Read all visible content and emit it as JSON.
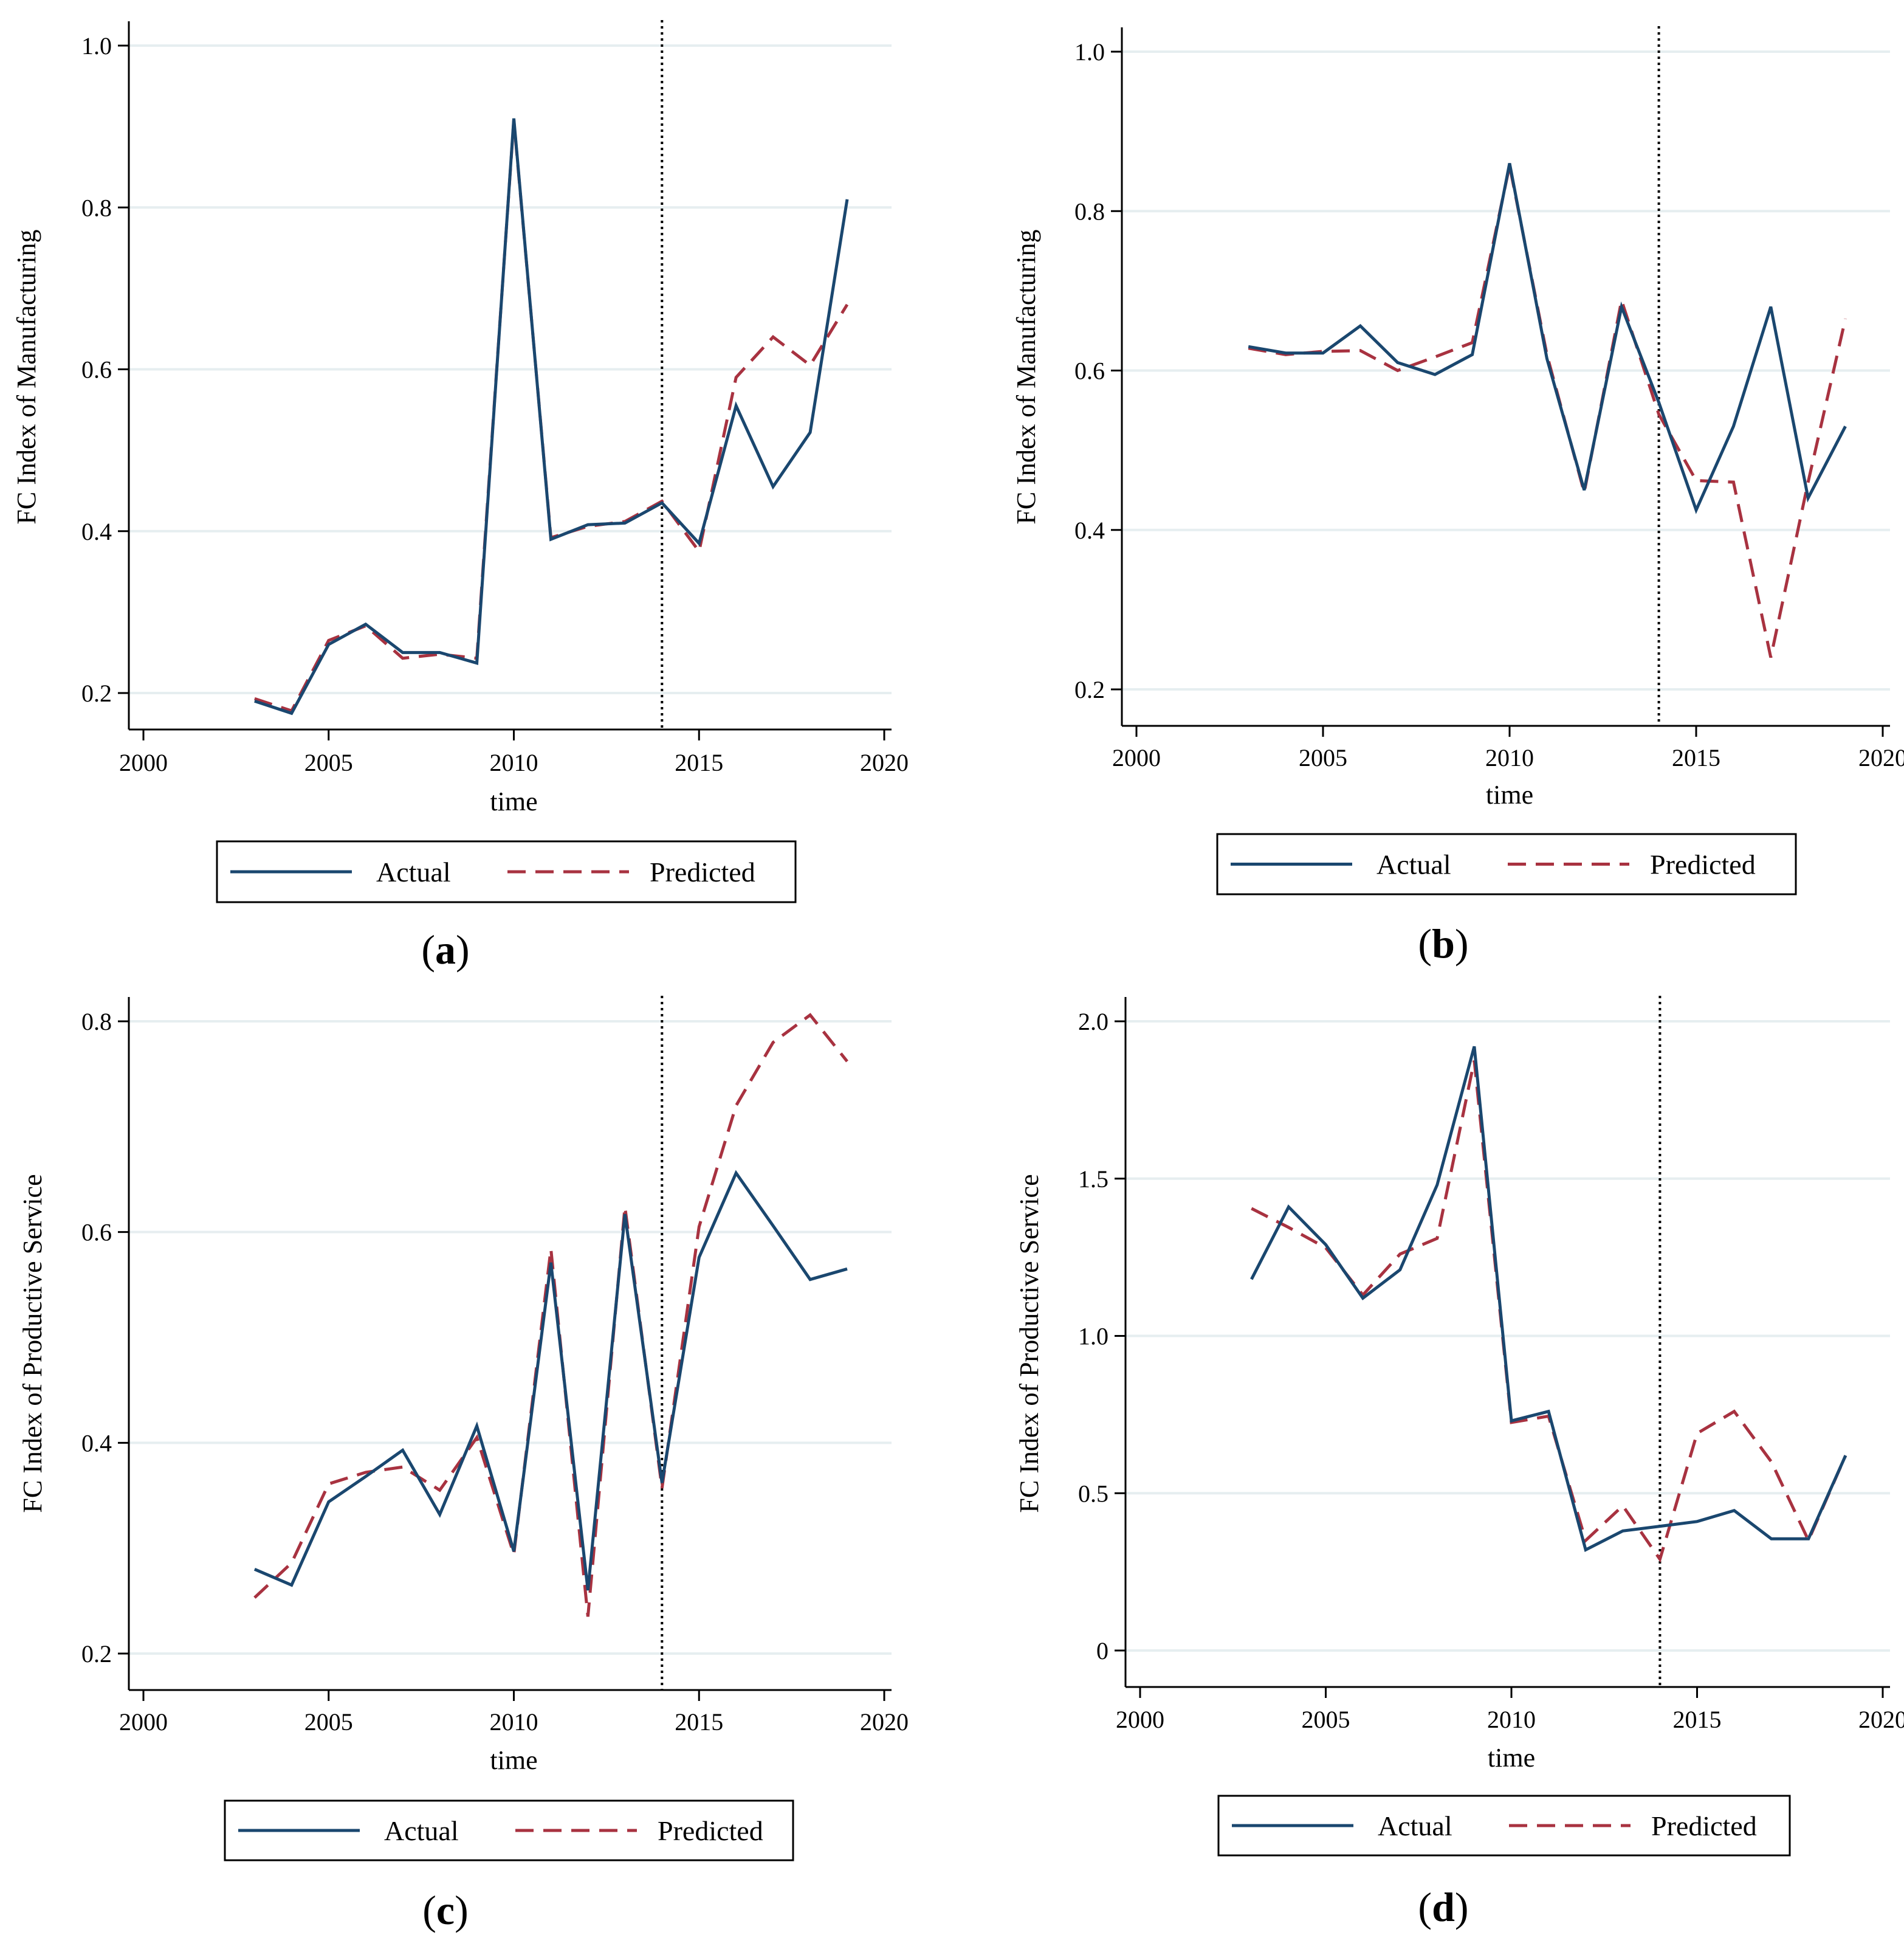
{
  "colors": {
    "actual": "#1a476f",
    "predicted": "#a83240",
    "grid": "#e6eef0",
    "axis": "#000000"
  },
  "chart_data": [
    {
      "type": "line",
      "panel_label": "a",
      "xlabel": "time",
      "ylabel": "FC Index of Manufacturing",
      "xlim": [
        2000,
        2020
      ],
      "ylim": [
        0.2,
        1.0
      ],
      "xticks": [
        2000,
        2005,
        2010,
        2015,
        2020
      ],
      "xtick_labels": [
        "2000",
        "2005",
        "2010",
        "2015",
        "2020"
      ],
      "yticks": [
        0.2,
        0.4,
        0.6,
        0.8,
        1.0
      ],
      "ytick_labels": [
        "0.2",
        "0.4",
        "0.6",
        "0.8",
        "1.0"
      ],
      "grid": true,
      "legend_position": "bottom",
      "vline_x": 2014,
      "x": [
        2003,
        2004,
        2005,
        2006,
        2007,
        2008,
        2009,
        2010,
        2011,
        2012,
        2013,
        2014,
        2015,
        2016,
        2017,
        2018,
        2019
      ],
      "series": [
        {
          "name": "Actual",
          "style": "solid",
          "values": [
            0.19,
            0.175,
            0.26,
            0.285,
            0.25,
            0.25,
            0.237,
            0.91,
            0.39,
            0.408,
            0.41,
            0.435,
            0.385,
            0.555,
            0.455,
            0.522,
            0.81
          ]
        },
        {
          "name": "Predicted",
          "style": "dashed",
          "values": [
            0.193,
            0.178,
            0.265,
            0.283,
            0.243,
            0.248,
            0.243,
            0.908,
            0.392,
            0.406,
            0.412,
            0.437,
            0.375,
            0.59,
            0.64,
            0.605,
            0.68
          ]
        }
      ]
    },
    {
      "type": "line",
      "panel_label": "b",
      "xlabel": "time",
      "ylabel": "FC Index of Manufacturing",
      "xlim": [
        2000,
        2020
      ],
      "ylim": [
        0.2,
        1.0
      ],
      "xticks": [
        2000,
        2005,
        2010,
        2015,
        2020
      ],
      "xtick_labels": [
        "2000",
        "2005",
        "2010",
        "2015",
        "2020"
      ],
      "yticks": [
        0.2,
        0.4,
        0.6,
        0.8,
        1.0
      ],
      "ytick_labels": [
        "0.2",
        "0.4",
        "0.6",
        "0.8",
        "1.0"
      ],
      "grid": true,
      "legend_position": "bottom",
      "vline_x": 2014,
      "x": [
        2003,
        2004,
        2005,
        2006,
        2007,
        2008,
        2009,
        2010,
        2011,
        2012,
        2013,
        2014,
        2015,
        2016,
        2017,
        2018,
        2019
      ],
      "series": [
        {
          "name": "Actual",
          "style": "solid",
          "values": [
            0.63,
            0.622,
            0.622,
            0.656,
            0.61,
            0.595,
            0.62,
            0.86,
            0.615,
            0.45,
            0.68,
            0.56,
            0.425,
            0.53,
            0.68,
            0.44,
            0.53
          ]
        },
        {
          "name": "Predicted",
          "style": "dashed",
          "values": [
            0.628,
            0.62,
            0.624,
            0.625,
            0.6,
            0.617,
            0.635,
            0.857,
            0.62,
            0.447,
            0.688,
            0.545,
            0.462,
            0.46,
            0.24,
            0.46,
            0.665
          ]
        }
      ]
    },
    {
      "type": "line",
      "panel_label": "c",
      "xlabel": "time",
      "ylabel": "FC Index of Productive Service",
      "xlim": [
        2000,
        2020
      ],
      "ylim": [
        0.2,
        0.8
      ],
      "xticks": [
        2000,
        2005,
        2010,
        2015,
        2020
      ],
      "xtick_labels": [
        "2000",
        "2005",
        "2010",
        "2015",
        "2020"
      ],
      "yticks": [
        0.2,
        0.4,
        0.6,
        0.8
      ],
      "ytick_labels": [
        "0.2",
        "0.4",
        "0.6",
        "0.8"
      ],
      "grid": true,
      "legend_position": "bottom",
      "vline_x": 2014,
      "x": [
        2003,
        2004,
        2005,
        2006,
        2007,
        2008,
        2009,
        2010,
        2011,
        2012,
        2013,
        2014,
        2015,
        2016,
        2017,
        2018,
        2019
      ],
      "series": [
        {
          "name": "Actual",
          "style": "solid",
          "values": [
            0.28,
            0.265,
            0.344,
            0.368,
            0.393,
            0.332,
            0.416,
            0.297,
            0.571,
            0.26,
            0.617,
            0.362,
            0.576,
            0.656,
            0.606,
            0.555,
            0.565
          ]
        },
        {
          "name": "Predicted",
          "style": "dashed",
          "values": [
            0.253,
            0.286,
            0.361,
            0.372,
            0.377,
            0.355,
            0.405,
            0.294,
            0.584,
            0.235,
            0.624,
            0.357,
            0.605,
            0.72,
            0.78,
            0.806,
            0.762
          ]
        }
      ]
    },
    {
      "type": "line",
      "panel_label": "d",
      "xlabel": "time",
      "ylabel": "FC Index of Productive Service",
      "xlim": [
        2000,
        2020
      ],
      "ylim": [
        0,
        2.0
      ],
      "xticks": [
        2000,
        2005,
        2010,
        2015,
        2020
      ],
      "xtick_labels": [
        "2000",
        "2005",
        "2010",
        "2015",
        "2020"
      ],
      "yticks": [
        0,
        0.5,
        1.0,
        1.5,
        2.0
      ],
      "ytick_labels": [
        "0",
        "0.5",
        "1.0",
        "1.5",
        "2.0"
      ],
      "grid": true,
      "legend_position": "bottom",
      "vline_x": 2014,
      "x": [
        2003,
        2004,
        2005,
        2006,
        2007,
        2008,
        2009,
        2010,
        2011,
        2012,
        2013,
        2014,
        2015,
        2016,
        2017,
        2018,
        2019
      ],
      "series": [
        {
          "name": "Actual",
          "style": "solid",
          "values": [
            1.18,
            1.41,
            1.29,
            1.12,
            1.21,
            1.48,
            1.92,
            0.73,
            0.76,
            0.32,
            0.38,
            0.395,
            0.41,
            0.445,
            0.355,
            0.355,
            0.62
          ]
        },
        {
          "name": "Predicted",
          "style": "dashed",
          "values": [
            1.405,
            1.345,
            1.28,
            1.13,
            1.26,
            1.31,
            1.875,
            0.725,
            0.745,
            0.35,
            0.46,
            0.29,
            0.69,
            0.76,
            0.6,
            0.35,
            0.62
          ]
        }
      ]
    }
  ]
}
